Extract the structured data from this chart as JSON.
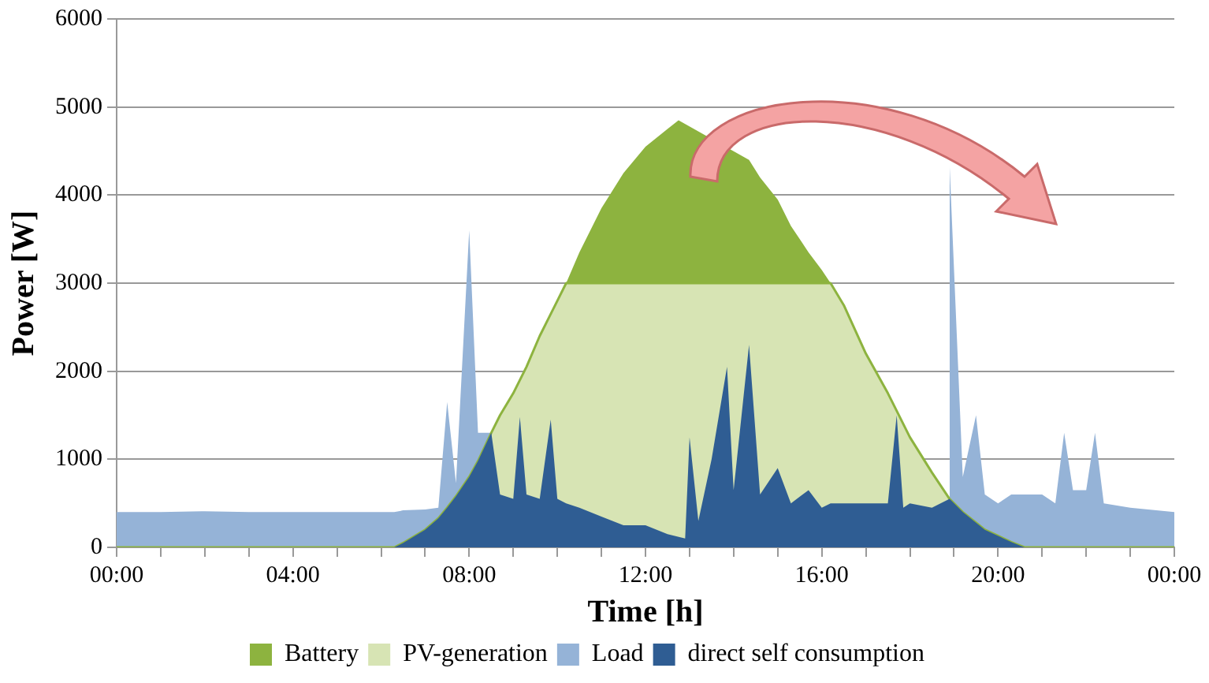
{
  "chart_data": {
    "type": "area",
    "xlabel": "Time [h]",
    "ylabel": "Power [W]",
    "x": [
      0,
      1,
      2,
      3,
      4,
      5,
      6,
      6.3,
      6.5,
      7,
      7.3,
      7.5,
      7.7,
      8,
      8.2,
      8.5,
      8.7,
      9,
      9.15,
      9.3,
      9.6,
      9.85,
      10,
      10.2,
      10.5,
      11,
      11.5,
      12,
      12.5,
      12.9,
      13,
      13.2,
      13.5,
      13.85,
      14,
      14.35,
      14.6,
      15,
      15.3,
      15.7,
      16,
      16.2,
      16.5,
      17,
      17.5,
      17.7,
      17.85,
      18,
      18.5,
      18.9,
      19.2,
      19.5,
      19.7,
      20,
      20.3,
      20.6,
      21,
      21.3,
      21.5,
      21.7,
      22,
      22.2,
      22.4,
      23,
      24
    ],
    "series": [
      {
        "name": "Battery",
        "color": "#8db33f",
        "x": [
          10.2,
          10.5,
          11,
          11.5,
          12,
          12.5,
          12.75,
          14.35,
          14.6,
          15,
          15.3,
          15.7,
          16,
          16.2
        ],
        "values": [
          3000,
          3350,
          3850,
          4250,
          4550,
          4750,
          4850,
          4400,
          4200,
          3950,
          3650,
          3350,
          3150,
          3000
        ]
      },
      {
        "name": "PV-generation",
        "color": "#d7e4b4",
        "values": [
          0,
          0,
          0,
          0,
          0,
          0,
          0,
          0,
          50,
          200,
          330,
          450,
          580,
          800,
          980,
          1300,
          1500,
          1750,
          1900,
          2050,
          2400,
          2650,
          2800,
          3000,
          3000,
          3000,
          3000,
          3000,
          3000,
          3000,
          3000,
          3000,
          3000,
          3000,
          3000,
          3000,
          3000,
          3000,
          3000,
          3000,
          3000,
          3000,
          2750,
          2200,
          1750,
          1550,
          1400,
          1250,
          850,
          550,
          400,
          280,
          200,
          130,
          60,
          0,
          0,
          0,
          0,
          0,
          0,
          0,
          0,
          0,
          0
        ]
      },
      {
        "name": "Load",
        "color": "#95b3d7",
        "values": [
          400,
          400,
          410,
          400,
          400,
          400,
          400,
          400,
          420,
          430,
          450,
          1650,
          730,
          3600,
          1300,
          1300,
          null,
          null,
          null,
          null,
          null,
          null,
          null,
          null,
          null,
          null,
          null,
          null,
          null,
          null,
          null,
          null,
          null,
          null,
          null,
          null,
          null,
          null,
          null,
          null,
          null,
          null,
          null,
          null,
          null,
          null,
          null,
          null,
          null,
          4350,
          800,
          1500,
          600,
          500,
          600,
          600,
          600,
          500,
          1300,
          650,
          650,
          1300,
          500,
          450,
          400
        ]
      },
      {
        "name": "direct self consumption",
        "color": "#2f5d93",
        "values": [
          0,
          0,
          0,
          0,
          0,
          0,
          0,
          0,
          50,
          200,
          330,
          450,
          580,
          800,
          980,
          1300,
          600,
          550,
          1480,
          600,
          550,
          1450,
          550,
          500,
          450,
          350,
          250,
          250,
          150,
          100,
          1250,
          300,
          1000,
          2050,
          650,
          2300,
          600,
          900,
          500,
          650,
          450,
          500,
          500,
          500,
          500,
          1500,
          450,
          500,
          450,
          550,
          400,
          280,
          200,
          130,
          60,
          0,
          0,
          0,
          0,
          0,
          0,
          0,
          0,
          0,
          0
        ]
      }
    ],
    "xlim": [
      0,
      24
    ],
    "xticks": [
      {
        "value": 0,
        "label": "00:00"
      },
      {
        "value": 1,
        "label": null
      },
      {
        "value": 2,
        "label": null
      },
      {
        "value": 3,
        "label": null
      },
      {
        "value": 4,
        "label": "04:00"
      },
      {
        "value": 5,
        "label": null
      },
      {
        "value": 6,
        "label": null
      },
      {
        "value": 7,
        "label": null
      },
      {
        "value": 8,
        "label": "08:00"
      },
      {
        "value": 9,
        "label": null
      },
      {
        "value": 10,
        "label": null
      },
      {
        "value": 11,
        "label": null
      },
      {
        "value": 12,
        "label": "12:00"
      },
      {
        "value": 13,
        "label": null
      },
      {
        "value": 14,
        "label": null
      },
      {
        "value": 15,
        "label": null
      },
      {
        "value": 16,
        "label": "16:00"
      },
      {
        "value": 17,
        "label": null
      },
      {
        "value": 18,
        "label": null
      },
      {
        "value": 19,
        "label": null
      },
      {
        "value": 20,
        "label": "20:00"
      },
      {
        "value": 21,
        "label": null
      },
      {
        "value": 22,
        "label": null
      },
      {
        "value": 23,
        "label": null
      },
      {
        "value": 24,
        "label": "00:00"
      }
    ],
    "ylim": [
      0,
      6000
    ],
    "yticks": [
      0,
      1000,
      2000,
      3000,
      4000,
      5000,
      6000
    ],
    "grid": "y",
    "legend": "bottom",
    "marker": "none"
  }
}
